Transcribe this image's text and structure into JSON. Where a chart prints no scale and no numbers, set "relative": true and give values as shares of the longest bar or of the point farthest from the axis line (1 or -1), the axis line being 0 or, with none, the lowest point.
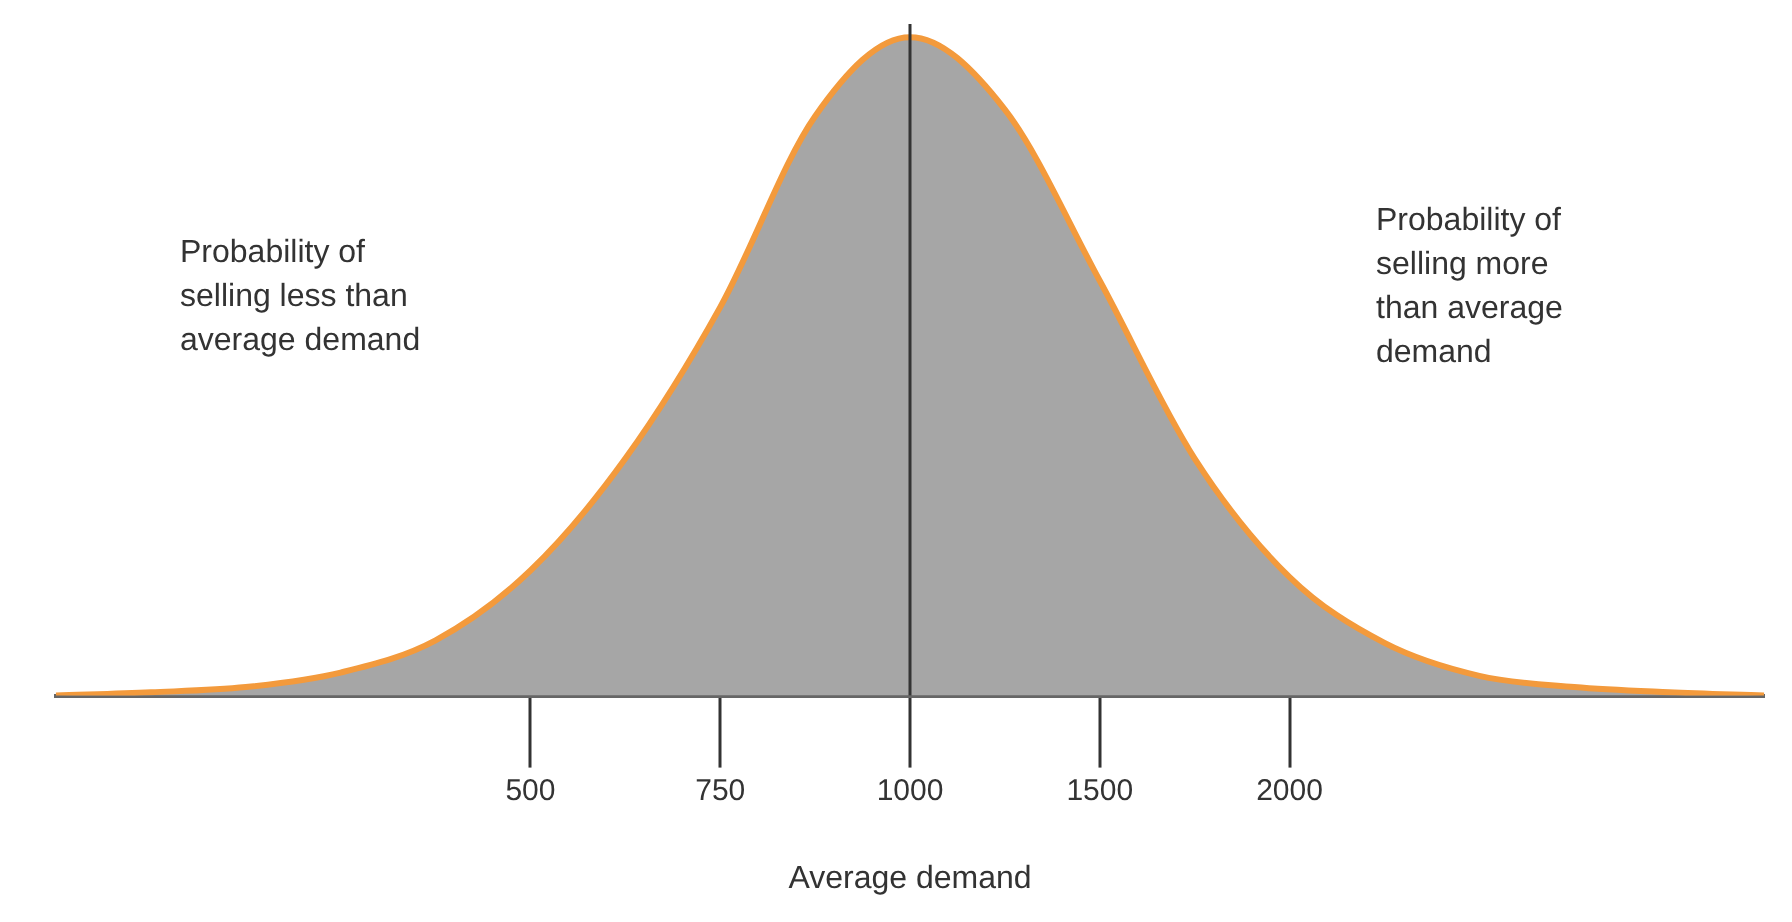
{
  "chart_data": {
    "type": "area",
    "relative": true,
    "xlabel": "Average demand",
    "categories": [
      null,
      null,
      null,
      null,
      null,
      "500",
      null,
      "750",
      null,
      "1000",
      null,
      "1500",
      null,
      "2000",
      null,
      null,
      null,
      null,
      null
    ],
    "series": [
      {
        "color": "#f39a3c",
        "values": [
          0,
          0.005,
          0.013,
          0.035,
          0.084,
          0.19,
          0.36,
          0.59,
          0.88,
          1,
          0.89,
          0.63,
          0.36,
          0.18,
          0.08,
          0.03,
          0.013,
          0.005,
          0
        ]
      }
    ],
    "ref_lines": [
      {
        "axis": "x",
        "value": "1000",
        "color": "#333333"
      }
    ],
    "annotations": [
      "Probability of\nselling less than\naverage demand",
      "Probability of\nselling more\nthan average\ndemand"
    ],
    "grid": false,
    "legend": false,
    "marker": "none"
  }
}
